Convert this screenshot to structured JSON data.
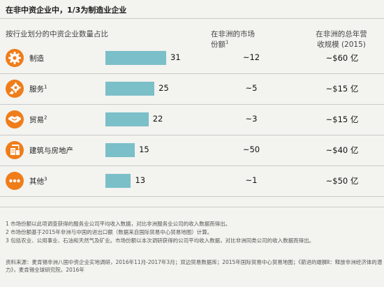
{
  "title": "在非中资企业中，1/3为制造业企业",
  "headers": {
    "share_of_firms": "按行业划分的中资企业数量占比",
    "market_share_line1": "在非洲的市场",
    "market_share_line2": "份额",
    "market_share_sup": "1",
    "market_size_line1": "在非洲的总年营",
    "market_size_line2": "收规模 (2015)"
  },
  "rows": [
    {
      "label": "制造",
      "sup": "",
      "icon": "gear-icon",
      "value": "31",
      "market_share": "~12",
      "market_size": "~$60 亿"
    },
    {
      "label": "服务",
      "sup": "1",
      "icon": "service-gear-icon",
      "value": "25",
      "market_share": "~5",
      "market_size": "~$15 亿"
    },
    {
      "label": "贸易",
      "sup": "2",
      "icon": "handshake-icon",
      "value": "22",
      "market_share": "~3",
      "market_size": "~$15 亿"
    },
    {
      "label": "建筑与房地产",
      "sup": "",
      "icon": "construction-icon",
      "value": "15",
      "market_share": "~50",
      "market_size": "~$40 亿"
    },
    {
      "label": "其他",
      "sup": "3",
      "icon": "more-dots-icon",
      "value": "13",
      "market_share": "~1",
      "market_size": "~$50 亿"
    }
  ],
  "chart_data": {
    "type": "bar",
    "orientation": "horizontal",
    "title": "按行业划分的中资企业数量占比",
    "categories": [
      "制造",
      "服务",
      "贸易",
      "建筑与房地产",
      "其他"
    ],
    "values": [
      31,
      25,
      22,
      15,
      13
    ],
    "market_share": [
      "~12",
      "~5",
      "~3",
      "~50",
      "~1"
    ],
    "market_size_2015": [
      "~$60 亿",
      "~$15 亿",
      "~$15 亿",
      "~$40 亿",
      "~$50 亿"
    ],
    "bar_color": "#7bbfc9",
    "icon_color": "#ef7d1a"
  },
  "footnotes": [
    "1 市场份额以此项调查获得的服务业公司平均收入数据，对比非洲服务业公司的收入数据而得出。",
    "2 市场份额基于2015年非洲与中国的进出口额（数据来自国际贸易中心贸易地图）计算。",
    "3 包括农业、公用事业、石油和天然气及矿业。市场份额以本次调研获得的公司平均收入数据，对比非洲同类公司的收入数据而得出。"
  ],
  "source": "资料来源：麦肯锡非洲八国中资企业实地调研，2016年11月-2017年3月；双边贸易数据库；2015年国际贸易中心贸易地图；《箭进的雄狮Ⅱ：释放非洲经济体的潜力》，麦肯锡全球研究院，2016年"
}
